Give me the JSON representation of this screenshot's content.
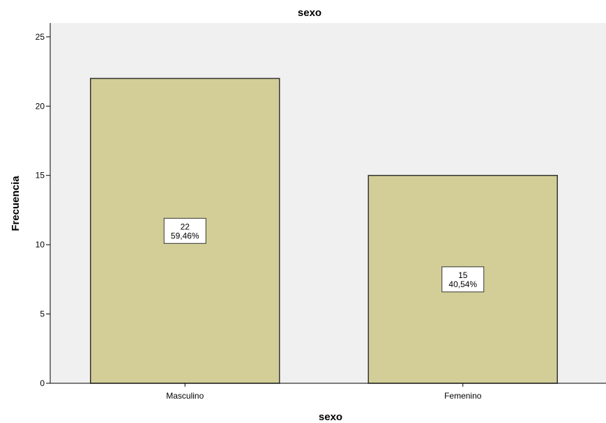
{
  "chart_data": {
    "type": "bar",
    "title": "sexo",
    "xlabel": "sexo",
    "ylabel": "Frecuencia",
    "categories": [
      "Masculino",
      "Femenino"
    ],
    "values": [
      22,
      15
    ],
    "data_labels": [
      {
        "count": "22",
        "percent": "59,46%"
      },
      {
        "count": "15",
        "percent": "40,54%"
      }
    ],
    "ylim": [
      0,
      26
    ],
    "yticks": [
      0,
      5,
      10,
      15,
      20,
      25
    ],
    "grid": false,
    "colors": {
      "plot_background": "#f0f0f0",
      "bar_fill": "#d3ce97",
      "bar_stroke": "#333333",
      "label_box_fill": "#ffffff",
      "label_box_stroke": "#333333"
    }
  }
}
